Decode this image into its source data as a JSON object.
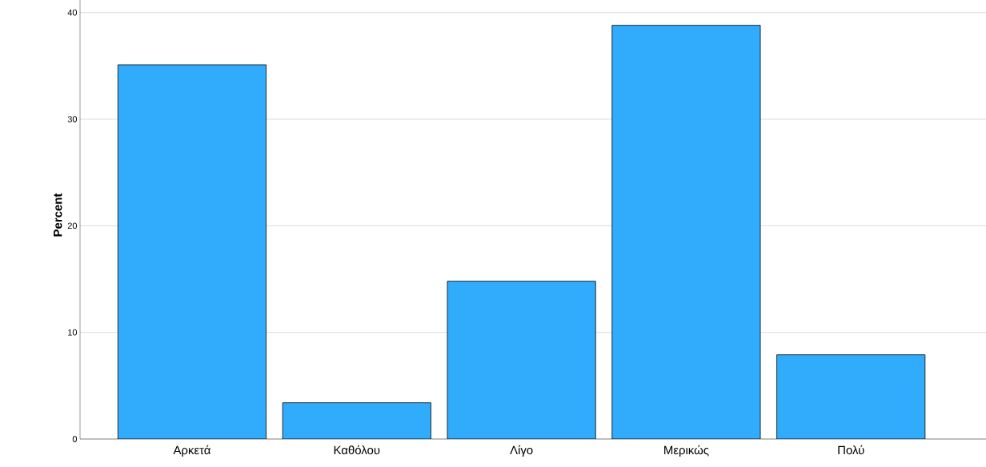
{
  "chart_data": {
    "type": "bar",
    "ylabel": "Percent",
    "categories": [
      "Αρκετά",
      "Καθόλου",
      "Λίγο",
      "Μερικώς",
      "Πολύ"
    ],
    "values": [
      35.1,
      3.4,
      14.8,
      38.8,
      7.9
    ],
    "color": "#31acfc",
    "ylim": [
      0,
      42
    ],
    "yticks": [
      0,
      10,
      20,
      30,
      40
    ],
    "grid": "y"
  }
}
